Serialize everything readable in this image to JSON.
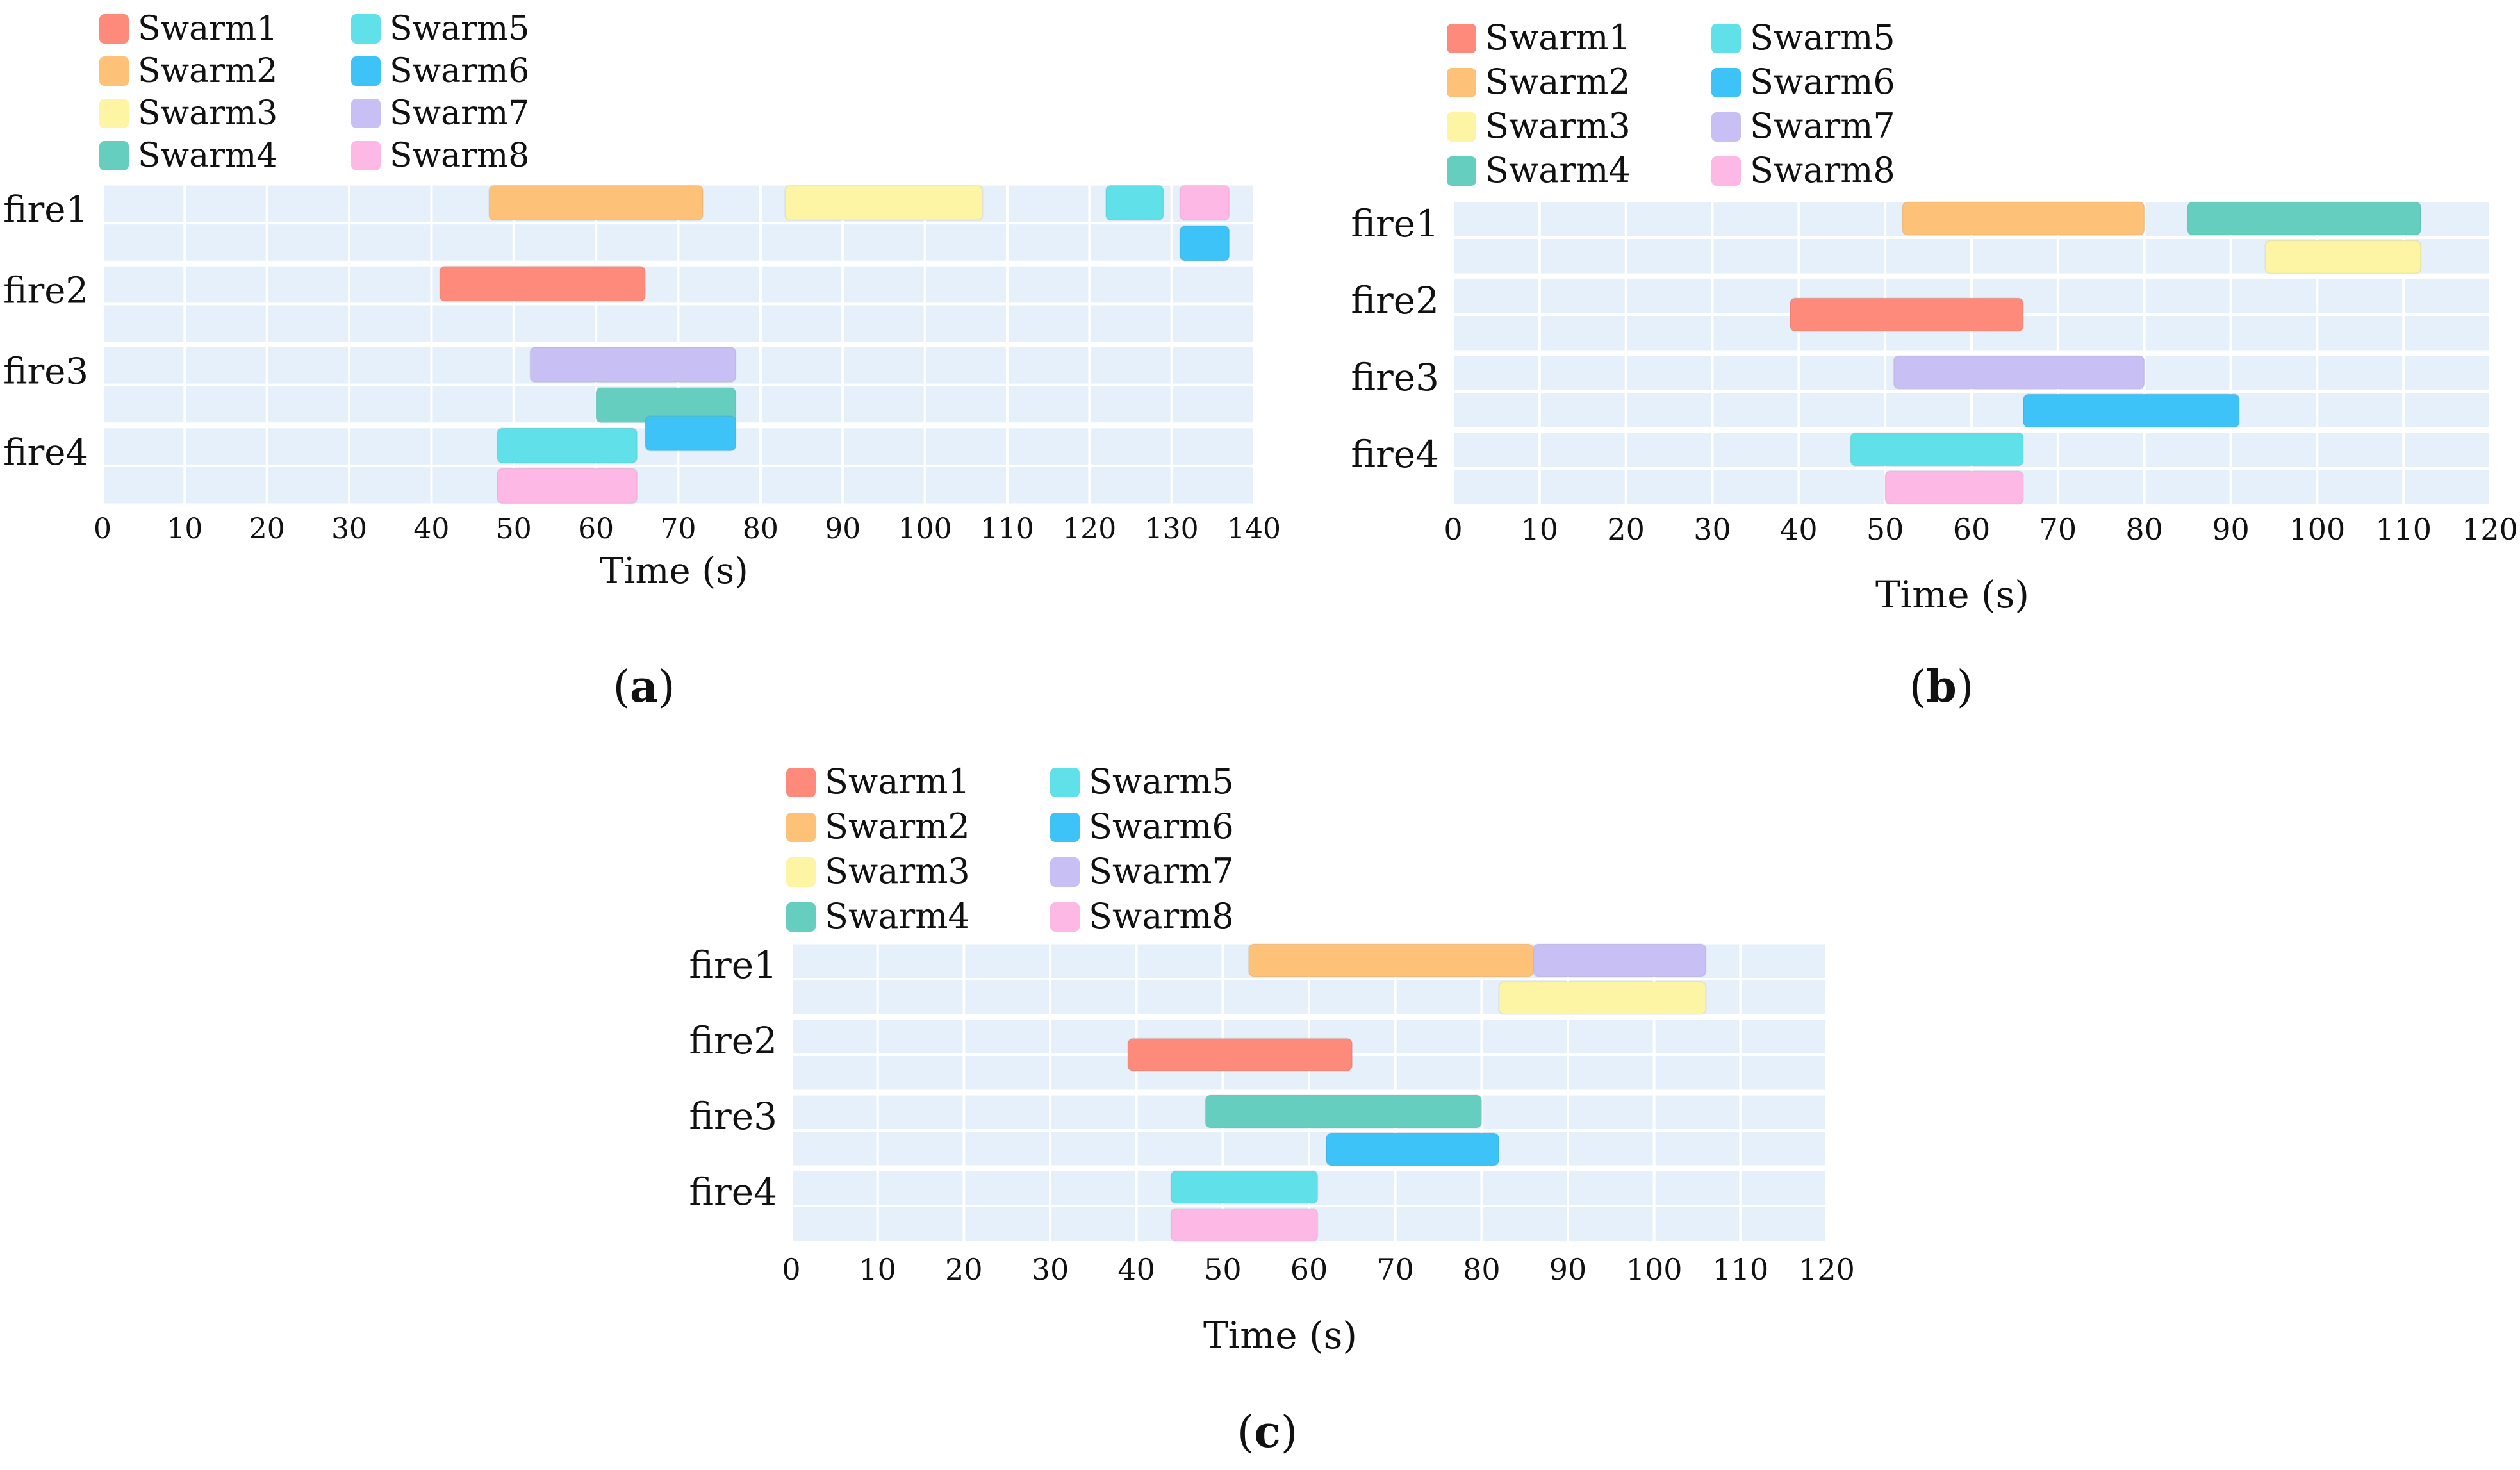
{
  "swarm_colors": {
    "Swarm1": "#fd8a7a",
    "Swarm2": "#fdc277",
    "Swarm3": "#fdf4a4",
    "Swarm4": "#66cebf",
    "Swarm5": "#60e1e9",
    "Swarm6": "#3ec3f8",
    "Swarm7": "#c8bff5",
    "Swarm8": "#fdb8e6"
  },
  "plot_background": "#e6f0fa",
  "chart_data": [
    {
      "type": "gantt",
      "panel_label": "a",
      "xlabel": "Time (s)",
      "xlim": [
        0,
        140
      ],
      "xticks": [
        0,
        10,
        20,
        30,
        40,
        50,
        60,
        70,
        80,
        90,
        100,
        110,
        120,
        130,
        140
      ],
      "categories": [
        "fire1",
        "fire2",
        "fire3",
        "fire4"
      ],
      "legend": [
        "Swarm1",
        "Swarm2",
        "Swarm3",
        "Swarm4",
        "Swarm5",
        "Swarm6",
        "Swarm7",
        "Swarm8"
      ],
      "tasks": [
        {
          "swarm": "Swarm2",
          "fire": "fire1",
          "lane": 0,
          "start": 47,
          "end": 73
        },
        {
          "swarm": "Swarm3",
          "fire": "fire1",
          "lane": 0,
          "start": 83,
          "end": 107
        },
        {
          "swarm": "Swarm5",
          "fire": "fire1",
          "lane": 0,
          "start": 122,
          "end": 129
        },
        {
          "swarm": "Swarm8",
          "fire": "fire1",
          "lane": 0,
          "start": 131,
          "end": 137
        },
        {
          "swarm": "Swarm6",
          "fire": "fire1",
          "lane": 1,
          "start": 131,
          "end": 137
        },
        {
          "swarm": "Swarm1",
          "fire": "fire2",
          "lane": 0,
          "start": 41,
          "end": 66
        },
        {
          "swarm": "Swarm7",
          "fire": "fire3",
          "lane": 0,
          "start": 52,
          "end": 77
        },
        {
          "swarm": "Swarm4",
          "fire": "fire3",
          "lane": 1,
          "start": 60,
          "end": 77
        },
        {
          "swarm": "Swarm6",
          "fire": "fire3",
          "lane": 1.7,
          "start": 66,
          "end": 77
        },
        {
          "swarm": "Swarm5",
          "fire": "fire4",
          "lane": 0,
          "start": 48,
          "end": 65
        },
        {
          "swarm": "Swarm8",
          "fire": "fire4",
          "lane": 1,
          "start": 48,
          "end": 65
        }
      ]
    },
    {
      "type": "gantt",
      "panel_label": "b",
      "xlabel": "Time (s)",
      "xlim": [
        0,
        120
      ],
      "xticks": [
        0,
        10,
        20,
        30,
        40,
        50,
        60,
        70,
        80,
        90,
        100,
        110,
        120
      ],
      "categories": [
        "fire1",
        "fire2",
        "fire3",
        "fire4"
      ],
      "legend": [
        "Swarm1",
        "Swarm2",
        "Swarm3",
        "Swarm4",
        "Swarm5",
        "Swarm6",
        "Swarm7",
        "Swarm8"
      ],
      "tasks": [
        {
          "swarm": "Swarm2",
          "fire": "fire1",
          "lane": 0,
          "start": 52,
          "end": 80
        },
        {
          "swarm": "Swarm4",
          "fire": "fire1",
          "lane": 0,
          "start": 85,
          "end": 112
        },
        {
          "swarm": "Swarm3",
          "fire": "fire1",
          "lane": 1,
          "start": 94,
          "end": 112
        },
        {
          "swarm": "Swarm1",
          "fire": "fire2",
          "lane": 0.5,
          "start": 39,
          "end": 66
        },
        {
          "swarm": "Swarm7",
          "fire": "fire3",
          "lane": 0,
          "start": 51,
          "end": 80
        },
        {
          "swarm": "Swarm6",
          "fire": "fire3",
          "lane": 1,
          "start": 66,
          "end": 91
        },
        {
          "swarm": "Swarm5",
          "fire": "fire4",
          "lane": 0,
          "start": 46,
          "end": 66
        },
        {
          "swarm": "Swarm8",
          "fire": "fire4",
          "lane": 1,
          "start": 50,
          "end": 66
        }
      ]
    },
    {
      "type": "gantt",
      "panel_label": "c",
      "xlabel": "Time (s)",
      "xlim": [
        0,
        120
      ],
      "xticks": [
        0,
        10,
        20,
        30,
        40,
        50,
        60,
        70,
        80,
        90,
        100,
        110,
        120
      ],
      "categories": [
        "fire1",
        "fire2",
        "fire3",
        "fire4"
      ],
      "legend": [
        "Swarm1",
        "Swarm2",
        "Swarm3",
        "Swarm4",
        "Swarm5",
        "Swarm6",
        "Swarm7",
        "Swarm8"
      ],
      "tasks": [
        {
          "swarm": "Swarm2",
          "fire": "fire1",
          "lane": 0,
          "start": 53,
          "end": 86
        },
        {
          "swarm": "Swarm7",
          "fire": "fire1",
          "lane": 0,
          "start": 86,
          "end": 106
        },
        {
          "swarm": "Swarm3",
          "fire": "fire1",
          "lane": 1,
          "start": 82,
          "end": 106
        },
        {
          "swarm": "Swarm1",
          "fire": "fire2",
          "lane": 0.5,
          "start": 39,
          "end": 65
        },
        {
          "swarm": "Swarm4",
          "fire": "fire3",
          "lane": 0,
          "start": 48,
          "end": 80
        },
        {
          "swarm": "Swarm6",
          "fire": "fire3",
          "lane": 1,
          "start": 62,
          "end": 82
        },
        {
          "swarm": "Swarm5",
          "fire": "fire4",
          "lane": 0,
          "start": 44,
          "end": 61
        },
        {
          "swarm": "Swarm8",
          "fire": "fire4",
          "lane": 1,
          "start": 44,
          "end": 61
        }
      ]
    }
  ]
}
